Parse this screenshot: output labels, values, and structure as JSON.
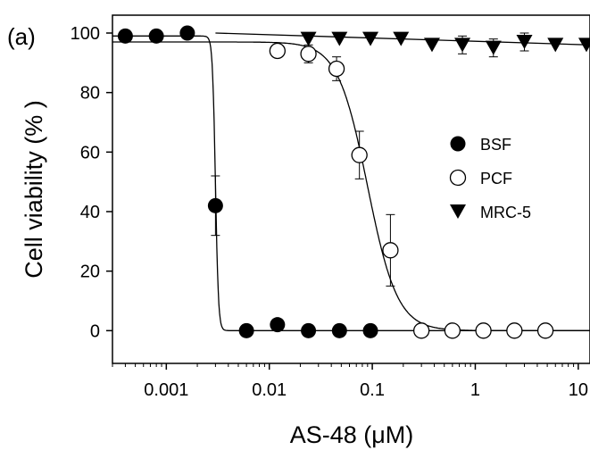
{
  "chart_data": {
    "type": "scatter",
    "panel_label": "(a)",
    "xlabel": "AS-48 (μM)",
    "ylabel": "Cell viability (% )",
    "xscale": "log",
    "xlim": [
      0.0003,
      13
    ],
    "ylim": [
      -11,
      106
    ],
    "x_ticks": [
      {
        "value": 0.001,
        "label": "0.001"
      },
      {
        "value": 0.01,
        "label": "0.01"
      },
      {
        "value": 0.1,
        "label": "0.1"
      },
      {
        "value": 1,
        "label": "1"
      },
      {
        "value": 10,
        "label": "10"
      }
    ],
    "y_ticks": [
      0,
      20,
      40,
      60,
      80,
      100
    ],
    "grid": false,
    "legend_position": "center-right",
    "series": [
      {
        "name": "BSF",
        "marker": "filled-circle",
        "points": [
          {
            "x": 0.0004,
            "y": 99
          },
          {
            "x": 0.0008,
            "y": 99
          },
          {
            "x": 0.0016,
            "y": 100
          },
          {
            "x": 0.003,
            "y": 42,
            "err": 10
          },
          {
            "x": 0.006,
            "y": 0
          },
          {
            "x": 0.012,
            "y": 2
          },
          {
            "x": 0.024,
            "y": 0
          },
          {
            "x": 0.048,
            "y": 0
          },
          {
            "x": 0.096,
            "y": 0
          }
        ],
        "fit": {
          "top": 99,
          "bottom": 0,
          "ec50": 0.003,
          "hill": 30
        }
      },
      {
        "name": "PCF",
        "marker": "open-circle",
        "points": [
          {
            "x": 0.012,
            "y": 94,
            "err": 2
          },
          {
            "x": 0.024,
            "y": 93,
            "err": 3
          },
          {
            "x": 0.045,
            "y": 88,
            "err": 4
          },
          {
            "x": 0.075,
            "y": 59,
            "err": 8
          },
          {
            "x": 0.15,
            "y": 27,
            "err": 12
          },
          {
            "x": 0.3,
            "y": 0
          },
          {
            "x": 0.6,
            "y": 0
          },
          {
            "x": 1.2,
            "y": 0
          },
          {
            "x": 2.4,
            "y": 0
          },
          {
            "x": 4.8,
            "y": 0
          }
        ],
        "fit": {
          "top": 97,
          "bottom": 0,
          "ec50": 0.09,
          "hill": 3
        }
      },
      {
        "name": "MRC-5",
        "marker": "filled-triangle-down",
        "points": [
          {
            "x": 0.024,
            "y": 98
          },
          {
            "x": 0.048,
            "y": 98
          },
          {
            "x": 0.096,
            "y": 98
          },
          {
            "x": 0.19,
            "y": 98
          },
          {
            "x": 0.38,
            "y": 96
          },
          {
            "x": 0.75,
            "y": 96,
            "err": 3
          },
          {
            "x": 1.5,
            "y": 95,
            "err": 3
          },
          {
            "x": 3,
            "y": 97,
            "err": 3
          },
          {
            "x": 6,
            "y": 96
          },
          {
            "x": 12,
            "y": 96
          }
        ],
        "fit": {
          "line": [
            {
              "x": 0.003,
              "y": 100
            },
            {
              "x": 13,
              "y": 96
            }
          ]
        }
      }
    ]
  }
}
